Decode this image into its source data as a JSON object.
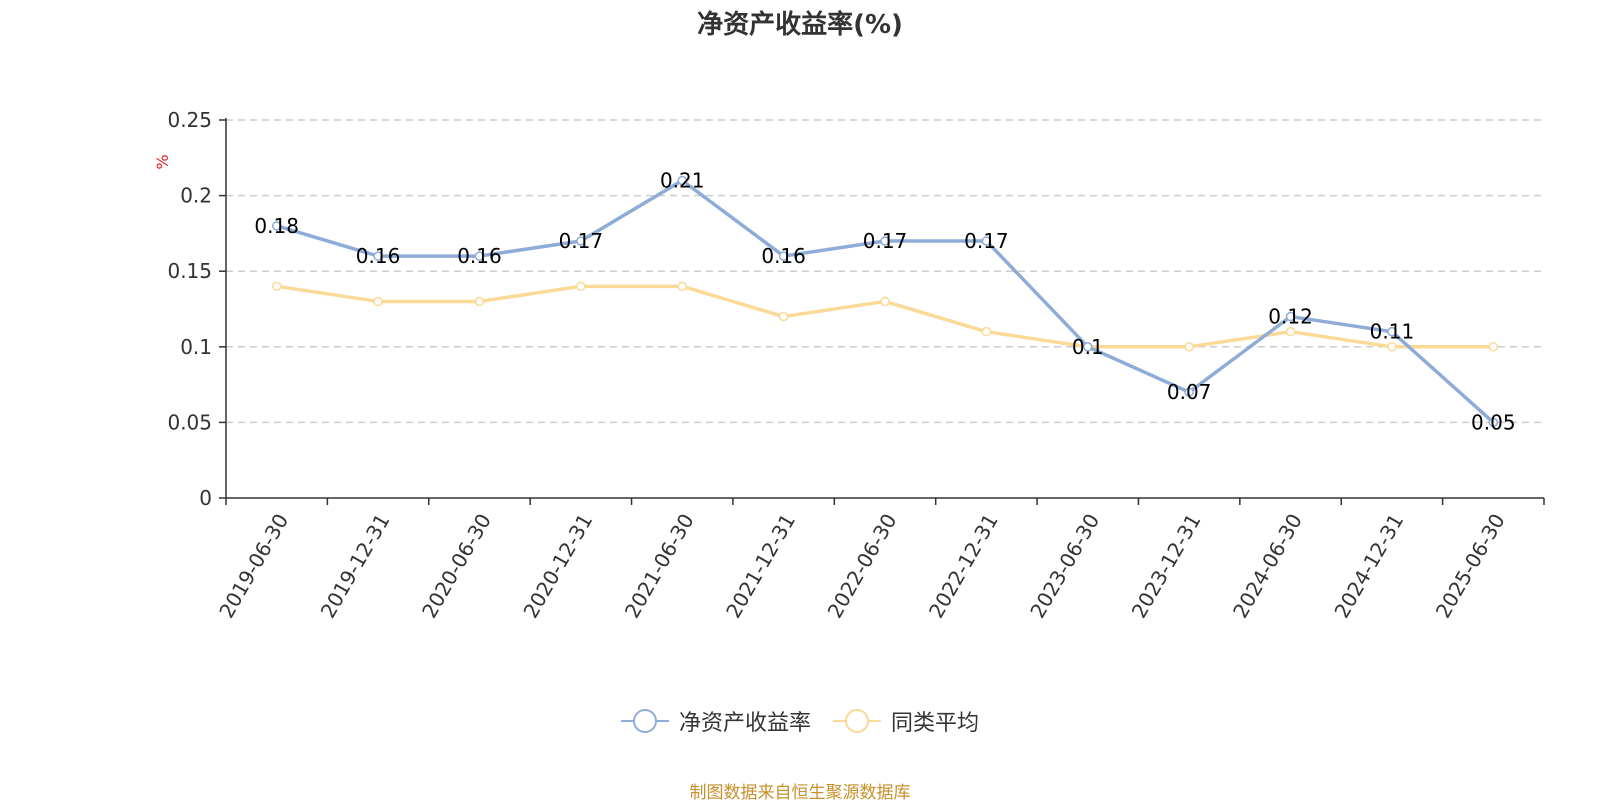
{
  "chart_data": {
    "type": "line",
    "title": "净资产收益率(%)",
    "ylabel": "%",
    "ylim": [
      0,
      0.25
    ],
    "yticks": [
      "0",
      "0.05",
      "0.1",
      "0.15",
      "0.2",
      "0.25"
    ],
    "grid": true,
    "legend_position": "bottom",
    "categories": [
      "2019-06-30",
      "2019-12-31",
      "2020-06-30",
      "2020-12-31",
      "2021-06-30",
      "2021-12-31",
      "2022-06-30",
      "2022-12-31",
      "2023-06-30",
      "2023-12-31",
      "2024-06-30",
      "2024-12-31",
      "2025-06-30"
    ],
    "series": [
      {
        "name": "净资产收益率",
        "color": "#8eacd8",
        "values": [
          0.18,
          0.16,
          0.16,
          0.17,
          0.21,
          0.16,
          0.17,
          0.17,
          0.1,
          0.07,
          0.12,
          0.11,
          0.05
        ],
        "labels": [
          "0.18",
          "0.16",
          "0.16",
          "0.17",
          "0.21",
          "0.16",
          "0.17",
          "0.17",
          "0.1",
          "0.07",
          "0.12",
          "0.11",
          "0.05"
        ]
      },
      {
        "name": "同类平均",
        "color": "#fbd996",
        "values": [
          0.14,
          0.13,
          0.13,
          0.14,
          0.14,
          0.12,
          0.13,
          0.11,
          0.1,
          0.1,
          0.11,
          0.1,
          0.1
        ]
      }
    ],
    "source": "制图数据来自恒生聚源数据库"
  }
}
